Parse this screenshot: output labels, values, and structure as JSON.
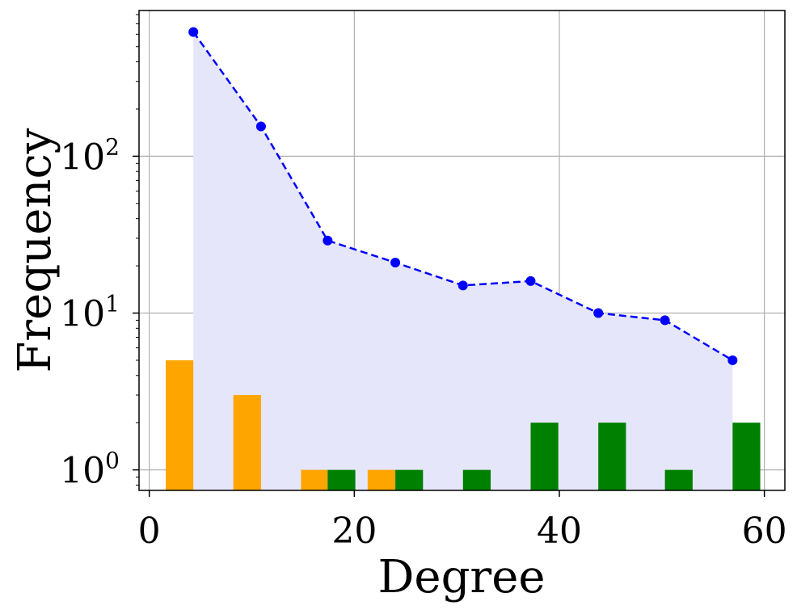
{
  "chart_data": {
    "type": "bar",
    "xlabel": "Degree",
    "ylabel": "Frequency",
    "xlim": [
      -1,
      62
    ],
    "ylim": [
      0.74,
      850
    ],
    "yscale": "log",
    "grid": true,
    "x_ticks": [
      0,
      20,
      40,
      60
    ],
    "y_ticks": [
      {
        "value": 1,
        "base": "10",
        "exp": "0"
      },
      {
        "value": 10,
        "base": "10",
        "exp": "1"
      },
      {
        "value": 100,
        "base": "10",
        "exp": "2"
      }
    ],
    "line_series": {
      "style": "dashed",
      "color": "#0000ff",
      "fill_color": "#e6e6fa",
      "x": [
        4.3,
        10.9,
        17.4,
        24.0,
        30.6,
        37.2,
        43.8,
        50.3,
        56.9
      ],
      "y": [
        620,
        155,
        29,
        21,
        15,
        16,
        10,
        9,
        5
      ]
    },
    "bar_series": [
      {
        "color": "#ffa500",
        "x_left": [
          1.6,
          8.2,
          14.8,
          21.3
        ],
        "x_right": [
          4.3,
          10.9,
          17.4,
          24.0
        ],
        "y": [
          5,
          3,
          1,
          1
        ]
      },
      {
        "color": "#008000",
        "x_left": [
          17.4,
          24.0,
          30.6,
          37.2,
          43.8,
          50.3,
          56.9
        ],
        "x_right": [
          20.1,
          26.7,
          33.3,
          39.9,
          46.5,
          53.0,
          59.6
        ],
        "y": [
          1,
          1,
          1,
          2,
          2,
          1,
          2
        ]
      }
    ]
  }
}
